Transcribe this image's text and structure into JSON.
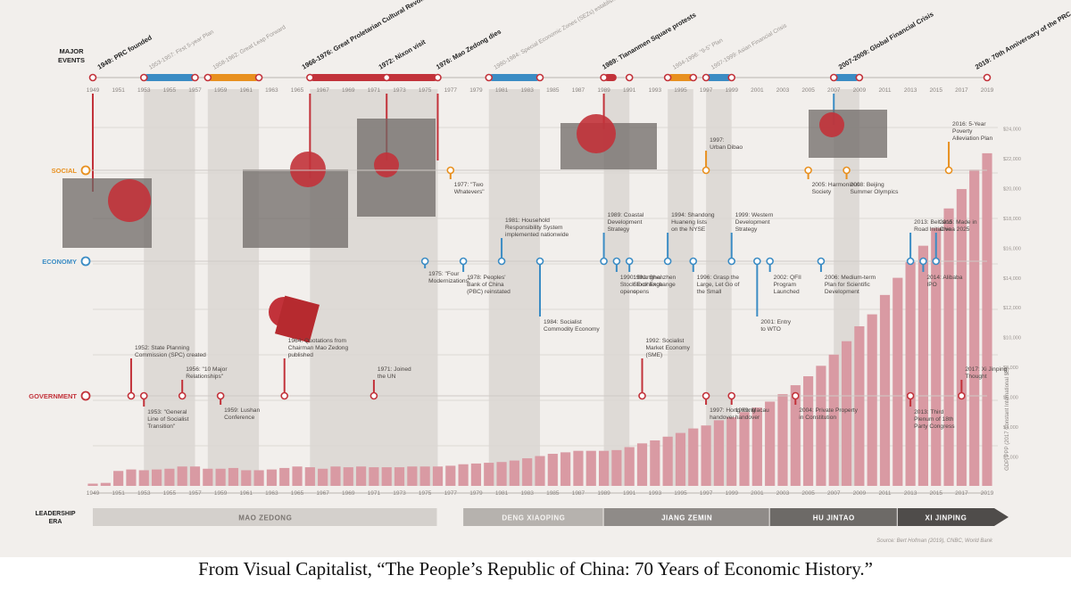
{
  "chart_data": {
    "type": "bar",
    "ylabel": "GDP, PPP (2017 Constant International $B)",
    "x_range": [
      1949,
      2019
    ],
    "x_tick_years": [
      1949,
      1951,
      1953,
      1955,
      1957,
      1959,
      1961,
      1963,
      1965,
      1967,
      1969,
      1971,
      1973,
      1975,
      1977,
      1979,
      1981,
      1983,
      1985,
      1987,
      1989,
      1991,
      1993,
      1995,
      1997,
      1999,
      2001,
      2003,
      2005,
      2007,
      2009,
      2011,
      2013,
      2015,
      2017,
      2019
    ],
    "ylim": [
      0,
      26000
    ],
    "y_tick_labels": [
      "$2,000",
      "$4,000",
      "$6,000",
      "$8,000",
      "$10,000",
      "$12,000",
      "$14,000",
      "$16,000",
      "$18,000",
      "$20,000",
      "$22,000",
      "$24,000"
    ],
    "series": [
      {
        "x": [
          1949,
          1950,
          1951,
          1952,
          1953,
          1954,
          1955,
          1956,
          1957,
          1958,
          1959,
          1960,
          1961,
          1962,
          1963,
          1964,
          1965,
          1966,
          1967,
          1968,
          1969,
          1970,
          1971,
          1972,
          1973,
          1974,
          1975,
          1976,
          1977,
          1978,
          1979,
          1980,
          1981,
          1982,
          1983,
          1984,
          1985,
          1986,
          1987,
          1988,
          1989,
          1990,
          1991,
          1992,
          1993,
          1994,
          1995,
          1996,
          1997,
          1998,
          1999,
          2000,
          2001,
          2002,
          2003,
          2004,
          2005,
          2006,
          2007,
          2008,
          2009,
          2010,
          2011,
          2012,
          2013,
          2014,
          2015,
          2016,
          2017,
          2018,
          2019
        ],
        "values": [
          150,
          200,
          1000,
          1100,
          1050,
          1100,
          1150,
          1300,
          1300,
          1150,
          1150,
          1200,
          1050,
          1050,
          1100,
          1200,
          1300,
          1250,
          1150,
          1300,
          1250,
          1300,
          1250,
          1250,
          1250,
          1300,
          1300,
          1300,
          1350,
          1450,
          1500,
          1550,
          1600,
          1700,
          1850,
          2000,
          2150,
          2250,
          2350,
          2350,
          2350,
          2400,
          2600,
          2850,
          3050,
          3300,
          3550,
          3850,
          4050,
          4400,
          4600,
          4950,
          5250,
          5650,
          6150,
          6750,
          7350,
          8050,
          8800,
          9700,
          10700,
          11500,
          12800,
          13950,
          15000,
          16100,
          17300,
          18600,
          19900,
          21200,
          22300
        ]
      }
    ],
    "major_events_label": "MAJOR EVENTS",
    "major_events": [
      {
        "text": "1949: PRC founded",
        "year": 1949.5,
        "dark": true
      },
      {
        "text": "1953-1957: First 5-year Plan",
        "year": 1953.5,
        "dark": false
      },
      {
        "text": "1958-1962: Great Leap Forward",
        "year": 1958.5,
        "dark": false
      },
      {
        "text": "1966-1976: Great Proletarian Cultural Revolution",
        "year": 1965.5,
        "dark": true
      },
      {
        "text": "1972: Nixon visit",
        "year": 1971.5,
        "dark": true
      },
      {
        "text": "1976: Mao Zedong dies",
        "year": 1976,
        "dark": true
      },
      {
        "text": "1980-1984: Special Economic Zones (SEZs) established",
        "year": 1980.5,
        "dark": false
      },
      {
        "text": "1989: Tiananmen Square protests",
        "year": 1989,
        "dark": true
      },
      {
        "text": "1994-1996: \"9-5\" Plan",
        "year": 1994.5,
        "dark": false
      },
      {
        "text": "1997-1999: Asian Financial Crisis",
        "year": 1997.5,
        "dark": false
      },
      {
        "text": "2007-2009: Global Financial Crisis",
        "year": 2007.5,
        "dark": true
      },
      {
        "text": "2019: 70th Anniversary of the PRC",
        "year": 2018.2,
        "dark": true
      }
    ],
    "event_bars": [
      {
        "start": 1953,
        "end": 1957,
        "color": "#3b8cc4"
      },
      {
        "start": 1958,
        "end": 1962,
        "color": "#e8901f"
      },
      {
        "start": 1966,
        "end": 1976,
        "color": "#c2323a"
      },
      {
        "start": 1980,
        "end": 1984,
        "color": "#3b8cc4"
      },
      {
        "start": 1989,
        "end": 1990,
        "color": "#c2323a"
      },
      {
        "start": 1994,
        "end": 1996,
        "color": "#e8901f"
      },
      {
        "start": 1997,
        "end": 1999,
        "color": "#3b8cc4"
      },
      {
        "start": 2007,
        "end": 2009,
        "color": "#3b8cc4"
      }
    ],
    "event_dots": [
      1949,
      1953,
      1957,
      1958,
      1962,
      1966,
      1972,
      1976,
      1980,
      1984,
      1989,
      1991,
      1994,
      1996,
      1997,
      1999,
      2007,
      2009,
      2019
    ],
    "shaded_spans": [
      [
        1953,
        1957
      ],
      [
        1958,
        1962
      ],
      [
        1966,
        1976
      ],
      [
        1980,
        1984
      ],
      [
        1989,
        1991
      ],
      [
        1994,
        1996
      ],
      [
        1997,
        1999
      ],
      [
        2007,
        2009
      ]
    ],
    "rows": [
      {
        "key": "social",
        "label": "SOCIAL",
        "color": "#e8901f"
      },
      {
        "key": "economy",
        "label": "ECONOMY",
        "color": "#3b8cc4"
      },
      {
        "key": "government",
        "label": "GOVERNMENT",
        "color": "#c2323a"
      }
    ],
    "social_events": [
      {
        "year": 1977,
        "lines": [
          "1977: \"Two",
          "Whatevers\""
        ]
      },
      {
        "year": 1997,
        "lines": [
          "1997:",
          "Urban Dibao"
        ]
      },
      {
        "year": 2005,
        "lines": [
          "2005: Harmonious",
          "Society"
        ]
      },
      {
        "year": 2008,
        "lines": [
          "2008: Beijing",
          "Summer Olympics"
        ]
      },
      {
        "year": 2016,
        "lines": [
          "2016: 5-Year",
          "Poverty",
          "Alleviation Plan"
        ]
      }
    ],
    "economy_events": [
      {
        "year": 1975,
        "lines": [
          "1975: \"Four",
          "Modernizations\""
        ]
      },
      {
        "year": 1978,
        "lines": [
          "1978: Peoples'",
          "Bank of China",
          "(PBC) reinstated"
        ]
      },
      {
        "year": 1981,
        "lines": [
          "1981: Household",
          "Responsibility System",
          "implemented nationwide"
        ]
      },
      {
        "year": 1984,
        "lines": [
          "1984: Socialist",
          "Commodity Economy"
        ]
      },
      {
        "year": 1989,
        "lines": [
          "1989: Coastal",
          "Development",
          "Strategy"
        ]
      },
      {
        "year": 1990,
        "lines": [
          "1990: Shanghai",
          "Stock Exchange",
          "opens"
        ]
      },
      {
        "year": 1991,
        "lines": [
          "1991: Shenzhen",
          "Stock Exchange",
          "opens"
        ]
      },
      {
        "year": 1994,
        "lines": [
          "1994: Shandong",
          "Huaneng lists",
          "on the NYSE"
        ]
      },
      {
        "year": 1996,
        "lines": [
          "1996: Grasp the",
          "Large, Let Go of",
          "the Small"
        ]
      },
      {
        "year": 1999,
        "lines": [
          "1999: Western",
          "Development",
          "Strategy"
        ]
      },
      {
        "year": 2001,
        "lines": [
          "2001: Entry",
          "to WTO"
        ]
      },
      {
        "year": 2002,
        "lines": [
          "2002: QFII",
          "Program",
          "Launched"
        ]
      },
      {
        "year": 2006,
        "lines": [
          "2006: Medium-term",
          "Plan for Scientific",
          "Development"
        ]
      },
      {
        "year": 2013,
        "lines": [
          "2013: Belt and",
          "Road Initiative"
        ]
      },
      {
        "year": 2014,
        "lines": [
          "2014: Alibaba",
          "IPO"
        ]
      },
      {
        "year": 2015,
        "lines": [
          "2015: Made in",
          "China 2025"
        ]
      }
    ],
    "government_events": [
      {
        "year": 1952,
        "lines": [
          "1952: State Planning",
          "Commission (SPC) created"
        ]
      },
      {
        "year": 1953,
        "lines": [
          "1953: \"General",
          "Line of Socialist",
          "Transition\""
        ]
      },
      {
        "year": 1956,
        "lines": [
          "1956: \"10 Major",
          "Relationships\""
        ]
      },
      {
        "year": 1959,
        "lines": [
          "1959: Lushan",
          "Conference"
        ]
      },
      {
        "year": 1964,
        "lines": [
          "1964: Quotations from",
          "Chairman Mao Zedong",
          "published"
        ]
      },
      {
        "year": 1971,
        "lines": [
          "1971: Joined",
          "the UN"
        ]
      },
      {
        "year": 1992,
        "lines": [
          "1992: Socialist",
          "Market Economy",
          "(SME)"
        ]
      },
      {
        "year": 1997,
        "lines": [
          "1997: Hong Kong",
          "handover"
        ]
      },
      {
        "year": 1999,
        "lines": [
          "1999: Macau",
          "handover"
        ]
      },
      {
        "year": 2004,
        "lines": [
          "2004: Private Property",
          "in Constitution"
        ]
      },
      {
        "year": 2013,
        "lines": [
          "2013: Third",
          "Plenum of 18th",
          "Party Congress"
        ]
      },
      {
        "year": 2017,
        "lines": [
          "2017: Xi Jinping",
          "Thought"
        ]
      }
    ],
    "leadership_label": [
      "LEADERSHIP",
      "ERA"
    ],
    "leadership_eras": [
      {
        "name": "MAO ZEDONG",
        "start": 1949,
        "end": 1976
      },
      {
        "name": "DENG XIAOPING",
        "start": 1978,
        "end": 1989
      },
      {
        "name": "JIANG ZEMIN",
        "start": 1989,
        "end": 2002
      },
      {
        "name": "HU JINTAO",
        "start": 2002,
        "end": 2012
      },
      {
        "name": "XI JINPING",
        "start": 2012,
        "end": 2020
      }
    ],
    "source": "Source: Bert Hofman (2019), CNBC, World Bank",
    "bar_color": "#d99aa3",
    "accent_red": "#c2323a",
    "accent_blue": "#3b8cc4",
    "accent_orange": "#e8901f",
    "grid_color": "#dcd8d4",
    "background_color": "#f2efec"
  },
  "caption": "From Visual Capitalist, “The People’s Republic of China: 70 Years of Economic History.”"
}
